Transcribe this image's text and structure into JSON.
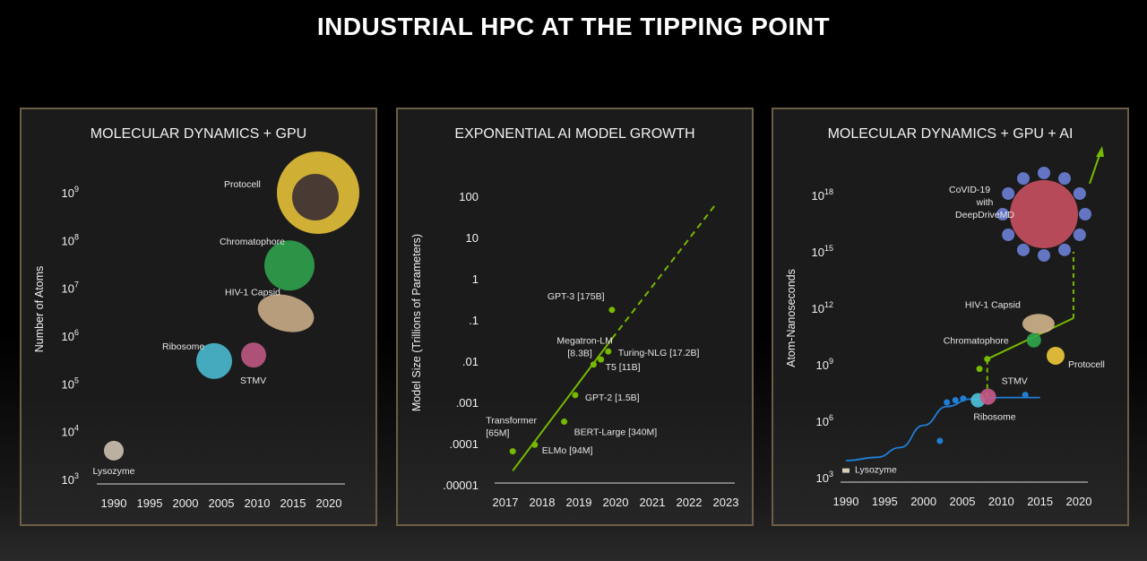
{
  "slide": {
    "title": "INDUSTRIAL HPC AT THE TIPPING POINT"
  },
  "colors": {
    "green": "#76b900",
    "blue": "#1f7fd6",
    "panel_border": "#6b5e44"
  },
  "chart_data": [
    {
      "type": "scatter",
      "title": "MOLECULAR DYNAMICS + GPU",
      "xlabel": "",
      "ylabel": "Number of Atoms",
      "yscale": "log",
      "xlim": [
        1990,
        2020
      ],
      "ylim": [
        1000,
        1000000000
      ],
      "x_ticks": [
        "1990",
        "1995",
        "2000",
        "2005",
        "2010",
        "2015",
        "2020"
      ],
      "y_ticks": [
        {
          "base": "10",
          "exp": "3"
        },
        {
          "base": "10",
          "exp": "4"
        },
        {
          "base": "10",
          "exp": "5"
        },
        {
          "base": "10",
          "exp": "6"
        },
        {
          "base": "10",
          "exp": "7"
        },
        {
          "base": "10",
          "exp": "8"
        },
        {
          "base": "10",
          "exp": "9"
        }
      ],
      "points": [
        {
          "label": "Lysozyme",
          "x": 1990,
          "y": 4000,
          "color": "#d8cbb8"
        },
        {
          "label": "Ribosome",
          "x": 2004,
          "y": 300000,
          "color": "#4cc3d9"
        },
        {
          "label": "STMV",
          "x": 2009.5,
          "y": 400000,
          "color": "#c85a8a"
        },
        {
          "label": "HIV-1 Capsid",
          "x": 2014,
          "y": 3000000,
          "color": "#d2b48c"
        },
        {
          "label": "Chromatophore",
          "x": 2014.5,
          "y": 30000000,
          "color": "#2fa84f"
        },
        {
          "label": "Protocell",
          "x": 2018.5,
          "y": 1000000000,
          "color": "#f0c93a"
        }
      ]
    },
    {
      "type": "scatter",
      "title": "EXPONENTIAL AI MODEL GROWTH",
      "xlabel": "",
      "ylabel": "Model Size (Trillions of Parameters)",
      "yscale": "log",
      "xlim": [
        2017,
        2023
      ],
      "ylim": [
        1e-05,
        100
      ],
      "x_ticks": [
        "2017",
        "2018",
        "2019",
        "2020",
        "2021",
        "2022",
        "2023"
      ],
      "y_ticks": [
        ".00001",
        ".0001",
        ".001",
        ".01",
        ".1",
        "1",
        "10",
        "100"
      ],
      "points": [
        {
          "label": "Transformer",
          "label2": "[65M]",
          "x": 2017.2,
          "y": 6.5e-05
        },
        {
          "label": "ELMo [94M]",
          "x": 2017.8,
          "y": 9.4e-05
        },
        {
          "label": "BERT-Large [340M]",
          "x": 2018.6,
          "y": 0.00034
        },
        {
          "label": "GPT-2 [1.5B]",
          "x": 2018.9,
          "y": 0.0015
        },
        {
          "label": "Megatron-LM",
          "label2": "[8.3B]",
          "x": 2019.4,
          "y": 0.0083
        },
        {
          "label": "T5 [11B]",
          "x": 2019.6,
          "y": 0.011
        },
        {
          "label": "Turing-NLG [17.2B]",
          "x": 2019.8,
          "y": 0.0172
        },
        {
          "label": "GPT-3 [175B]",
          "x": 2019.9,
          "y": 0.175
        }
      ],
      "trend": {
        "solid": [
          [
            2017.2,
            2.2e-05
          ],
          [
            2019.9,
            0.035
          ]
        ],
        "dashed": [
          [
            2019.9,
            0.035
          ],
          [
            2022.7,
            60
          ]
        ]
      }
    },
    {
      "type": "scatter",
      "title": "MOLECULAR DYNAMICS + GPU + AI",
      "xlabel": "",
      "ylabel": "Atom-Nanoseconds",
      "yscale": "log",
      "xlim": [
        1990,
        2020
      ],
      "ylim": [
        1000,
        1000000000000000000
      ],
      "x_ticks": [
        "1990",
        "1995",
        "2000",
        "2005",
        "2010",
        "2015",
        "2020"
      ],
      "y_ticks": [
        {
          "base": "10",
          "exp": "3"
        },
        {
          "base": "10",
          "exp": "6"
        },
        {
          "base": "10",
          "exp": "9"
        },
        {
          "base": "10",
          "exp": "12"
        },
        {
          "base": "10",
          "exp": "15"
        },
        {
          "base": "10",
          "exp": "18"
        }
      ],
      "blue_points": [
        [
          2002.1,
          90000
        ],
        [
          2003,
          10000000
        ],
        [
          2004.1,
          13000000
        ],
        [
          2005.1,
          16000000
        ],
        [
          2013.1,
          25000000
        ]
      ],
      "blue_curve": [
        [
          1990,
          8000
        ],
        [
          1994,
          12000
        ],
        [
          1997,
          40000
        ],
        [
          2000,
          600000
        ],
        [
          2003,
          6000000
        ],
        [
          2006,
          15000000
        ],
        [
          2010,
          18000000
        ],
        [
          2015,
          18000000
        ]
      ],
      "green_points": [
        [
          2007.2,
          600000000
        ],
        [
          2008.2,
          2000000000
        ]
      ],
      "green_line": [
        [
          2008.2,
          2000000000
        ],
        [
          2019.3,
          300000000000
        ]
      ],
      "green_dashed": [
        [
          [
            2008.2,
            20000000
          ],
          [
            2008.2,
            2000000000
          ]
        ],
        [
          [
            2019.3,
            300000000000
          ],
          [
            2019.3,
            1000000000000000
          ]
        ]
      ],
      "molecules": [
        {
          "label": "Lysozyme",
          "x": 1990,
          "y": 1300,
          "color": "#d8cbb8"
        },
        {
          "label": "Ribosome",
          "x": 2007,
          "y": 13000000,
          "color": "#4cc3d9"
        },
        {
          "label": "STMV",
          "x": 2008.3,
          "y": 20000000,
          "color": "#c85a8a"
        },
        {
          "label": "HIV-1 Capsid",
          "x": 2014.8,
          "y": 150000000000,
          "color": "#d2b48c"
        },
        {
          "label": "Chromatophore",
          "x": 2014.2,
          "y": 20000000000,
          "color": "#2fa84f"
        },
        {
          "label": "Protocell",
          "x": 2017,
          "y": 3000000000,
          "color": "#f0c93a"
        },
        {
          "label": "CoVID-19",
          "label2": "with",
          "label3": "DeepDriveMD",
          "x": 2015.5,
          "y": 100000000000000000,
          "color": "#c8505f"
        }
      ]
    }
  ]
}
